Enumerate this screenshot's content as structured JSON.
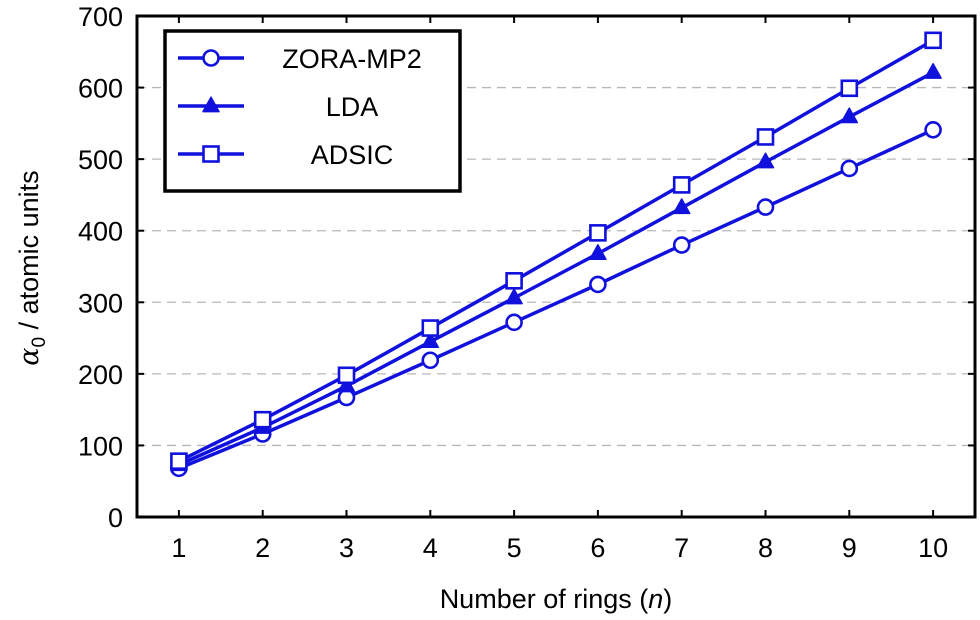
{
  "chart_data": {
    "type": "line",
    "title": "",
    "xlabel": "Number of rings (",
    "xlabel_var": "n",
    "xlabel_close": ")",
    "ylabel_symbol": "α",
    "ylabel_sub": "0",
    "ylabel_rest": " / atomic units",
    "x": [
      1,
      2,
      3,
      4,
      5,
      6,
      7,
      8,
      9,
      10
    ],
    "x_ticks": [
      "1",
      "2",
      "3",
      "4",
      "5",
      "6",
      "7",
      "8",
      "9",
      "10"
    ],
    "y_ticks": [
      "0",
      "100",
      "200",
      "300",
      "400",
      "500",
      "600",
      "700"
    ],
    "xlim": [
      0.5,
      10.5
    ],
    "ylim": [
      0,
      700
    ],
    "grid": "horizontal dashed",
    "legend_position": "top-left",
    "series": [
      {
        "name": "ZORA-MP2",
        "marker": "circle",
        "color": "#1111dd",
        "values": [
          68,
          116,
          167,
          219,
          272,
          325,
          380,
          433,
          487,
          541
        ]
      },
      {
        "name": "LDA",
        "marker": "triangle",
        "color": "#1111dd",
        "values": [
          73,
          125,
          183,
          245,
          306,
          368,
          432,
          496,
          559,
          621
        ]
      },
      {
        "name": "ADSIC",
        "marker": "square",
        "color": "#1111dd",
        "values": [
          78,
          136,
          198,
          264,
          330,
          397,
          464,
          531,
          599,
          666
        ]
      }
    ]
  }
}
